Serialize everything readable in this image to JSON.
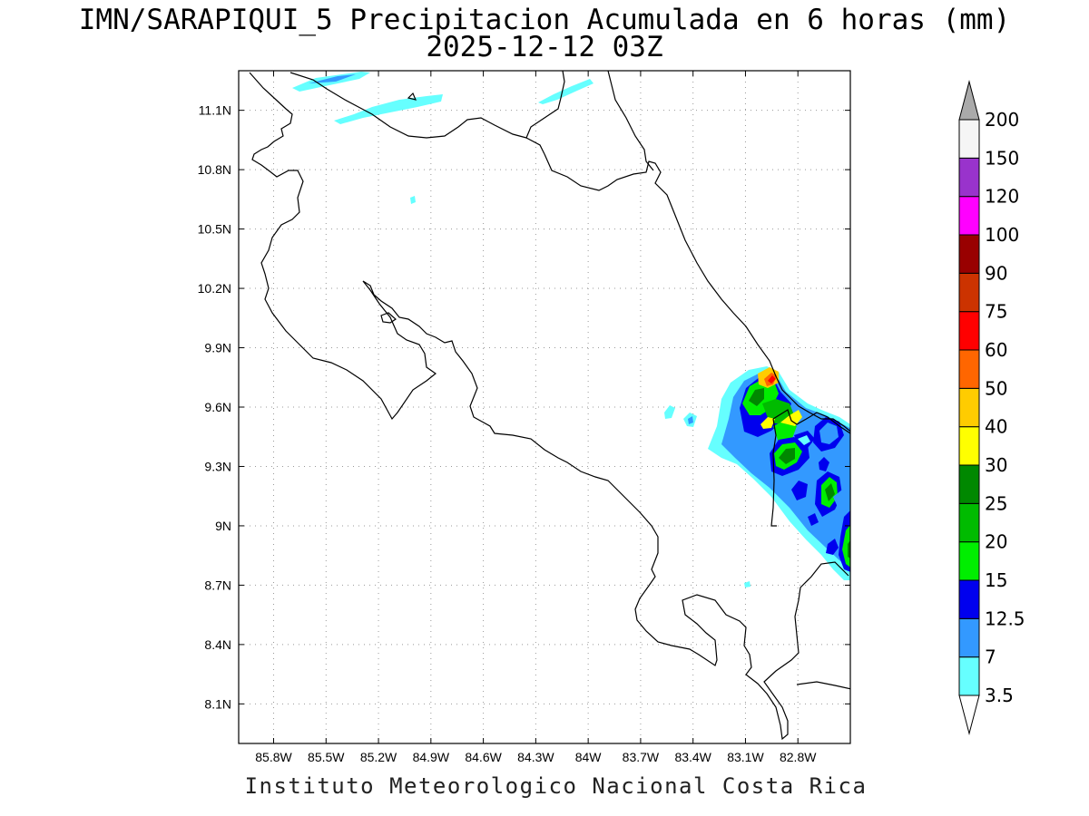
{
  "header": {
    "title_line1": "IMN/SARAPIQUI_5 Precipitacion Acumulada en 6 horas (mm)",
    "title_line2": "2025-12-12 03Z"
  },
  "footer": {
    "credit": "Instituto Meteorologico Nacional Costa Rica"
  },
  "map": {
    "lon_range": [
      -86.0,
      -82.5
    ],
    "lat_range": [
      7.9,
      11.3
    ],
    "lat_ticks": [
      "11.1N",
      "10.8N",
      "10.5N",
      "10.2N",
      "9.9N",
      "9.6N",
      "9.3N",
      "9N",
      "8.7N",
      "8.4N",
      "8.1N"
    ],
    "lon_ticks": [
      "85.8W",
      "85.5W",
      "85.2W",
      "84.9W",
      "84.6W",
      "84.3W",
      "84W",
      "83.7W",
      "83.4W",
      "83.1W",
      "82.8W"
    ],
    "grid": true,
    "grid_style": "dotted",
    "coastline_color": "#000000"
  },
  "colorbar": {
    "levels": [
      "3.5",
      "7",
      "12.5",
      "15",
      "20",
      "25",
      "30",
      "40",
      "50",
      "60",
      "75",
      "90",
      "100",
      "120",
      "150",
      "200"
    ],
    "colors": [
      "#66ffff",
      "#3399ff",
      "#0000ee",
      "#00ee00",
      "#00bb00",
      "#008800",
      "#ffff00",
      "#ffcc00",
      "#ff6600",
      "#ff0000",
      "#cc3300",
      "#990000",
      "#ff00ff",
      "#9933cc",
      "#f5f5f5",
      "#aaaaaa"
    ],
    "lower_arrow_color": "#ffffff",
    "upper_arrow_color": "#aaaaaa"
  }
}
